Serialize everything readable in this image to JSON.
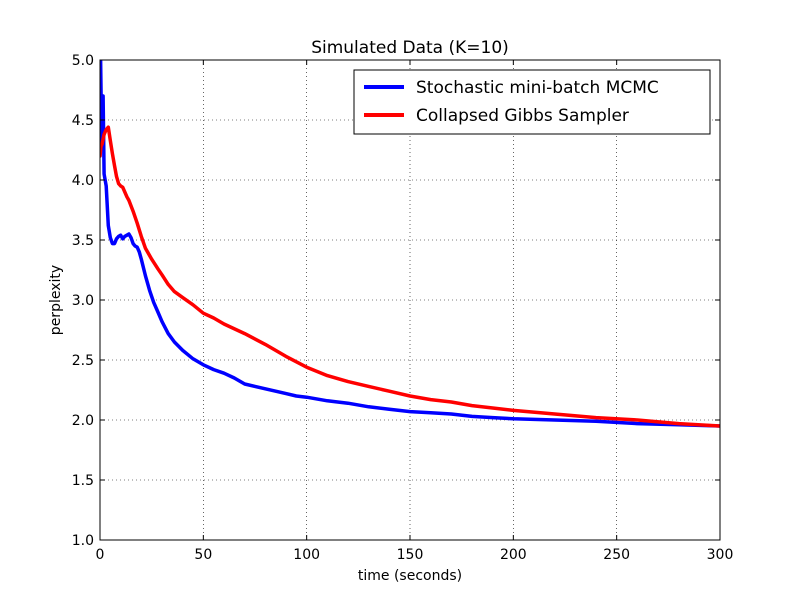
{
  "chart_data": {
    "type": "line",
    "title": "Simulated Data (K=10)",
    "xlabel": "time (seconds)",
    "ylabel": "perplexity",
    "xlim": [
      0,
      300
    ],
    "ylim": [
      1.0,
      5.0
    ],
    "xticks": [
      "0",
      "50",
      "100",
      "150",
      "200",
      "250",
      "300"
    ],
    "yticks": [
      "1.0",
      "1.5",
      "2.0",
      "2.5",
      "3.0",
      "3.5",
      "4.0",
      "4.5",
      "5.0"
    ],
    "xtick_values": [
      0,
      50,
      100,
      150,
      200,
      250,
      300
    ],
    "ytick_values": [
      1.0,
      1.5,
      2.0,
      2.5,
      3.0,
      3.5,
      4.0,
      4.5,
      5.0
    ],
    "grid": true,
    "legend_position": "top-right",
    "series": [
      {
        "name": "Stochastic mini-batch MCMC",
        "color": "#0000ff",
        "x": [
          0,
          0.3,
          0.8,
          1.5,
          2,
          3,
          4,
          5,
          6,
          7,
          8,
          9,
          10,
          11,
          12,
          13,
          14,
          15,
          16,
          17,
          18,
          19,
          20,
          22,
          24,
          26,
          28,
          30,
          33,
          36,
          40,
          45,
          50,
          55,
          60,
          65,
          70,
          75,
          80,
          85,
          90,
          95,
          100,
          110,
          120,
          130,
          140,
          150,
          160,
          170,
          180,
          190,
          200,
          220,
          240,
          260,
          280,
          300
        ],
        "y": [
          4.2,
          5.0,
          4.35,
          4.7,
          4.05,
          3.95,
          3.62,
          3.52,
          3.47,
          3.47,
          3.51,
          3.53,
          3.54,
          3.51,
          3.53,
          3.54,
          3.55,
          3.52,
          3.47,
          3.45,
          3.44,
          3.4,
          3.34,
          3.2,
          3.08,
          2.98,
          2.9,
          2.82,
          2.72,
          2.65,
          2.58,
          2.51,
          2.46,
          2.42,
          2.39,
          2.35,
          2.3,
          2.28,
          2.26,
          2.24,
          2.22,
          2.2,
          2.19,
          2.16,
          2.14,
          2.11,
          2.09,
          2.07,
          2.06,
          2.05,
          2.03,
          2.02,
          2.01,
          2.0,
          1.99,
          1.97,
          1.96,
          1.95
        ]
      },
      {
        "name": "Collapsed Gibbs Sampler",
        "color": "#ff0000",
        "x": [
          0,
          0.5,
          1,
          2,
          3,
          4,
          5,
          6,
          7,
          8,
          9,
          10,
          11,
          12,
          13,
          14,
          16,
          18,
          20,
          22,
          25,
          28,
          30,
          33,
          36,
          40,
          45,
          50,
          55,
          60,
          70,
          80,
          90,
          100,
          110,
          120,
          130,
          140,
          150,
          160,
          170,
          180,
          190,
          200,
          220,
          240,
          260,
          280,
          300
        ],
        "y": [
          4.2,
          4.28,
          4.3,
          4.38,
          4.42,
          4.44,
          4.33,
          4.22,
          4.12,
          4.03,
          3.97,
          3.95,
          3.94,
          3.9,
          3.86,
          3.83,
          3.74,
          3.64,
          3.53,
          3.43,
          3.34,
          3.26,
          3.21,
          3.13,
          3.07,
          3.02,
          2.96,
          2.89,
          2.85,
          2.8,
          2.72,
          2.63,
          2.53,
          2.44,
          2.37,
          2.32,
          2.28,
          2.24,
          2.2,
          2.17,
          2.15,
          2.12,
          2.1,
          2.08,
          2.05,
          2.02,
          2.0,
          1.97,
          1.95
        ]
      }
    ]
  }
}
